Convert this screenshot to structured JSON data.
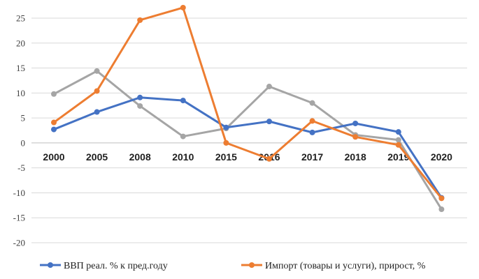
{
  "chart_data": {
    "type": "line",
    "title": "",
    "xlabel": "",
    "ylabel": "",
    "categories": [
      "2000",
      "2005",
      "2008",
      "2010",
      "2015",
      "2016",
      "2017",
      "2018",
      "2019",
      "2020"
    ],
    "ylim": [
      -20,
      25
    ],
    "yticks": [
      25,
      20,
      15,
      10,
      5,
      0,
      -5,
      -10,
      -15,
      -20
    ],
    "grid": true,
    "legend_position": "bottom",
    "series": [
      {
        "name": "ВВП реал. % к пред.году",
        "color": "#4472c4",
        "in_legend": true,
        "values": [
          2.7,
          6.2,
          9.1,
          8.5,
          3.1,
          4.3,
          2.1,
          3.9,
          2.2,
          -11.0
        ]
      },
      {
        "name": "",
        "color": "#a5a5a5",
        "in_legend": false,
        "values": [
          9.8,
          14.4,
          7.4,
          1.3,
          2.9,
          11.3,
          8.0,
          1.6,
          0.6,
          -13.3
        ]
      },
      {
        "name": "Импорт (товары и услуги), прирост, %",
        "color": "#ed7d31",
        "in_legend": true,
        "values": [
          4.1,
          10.4,
          24.6,
          27.1,
          0.0,
          -3.2,
          4.4,
          1.2,
          -0.4,
          -11.1
        ]
      }
    ]
  }
}
